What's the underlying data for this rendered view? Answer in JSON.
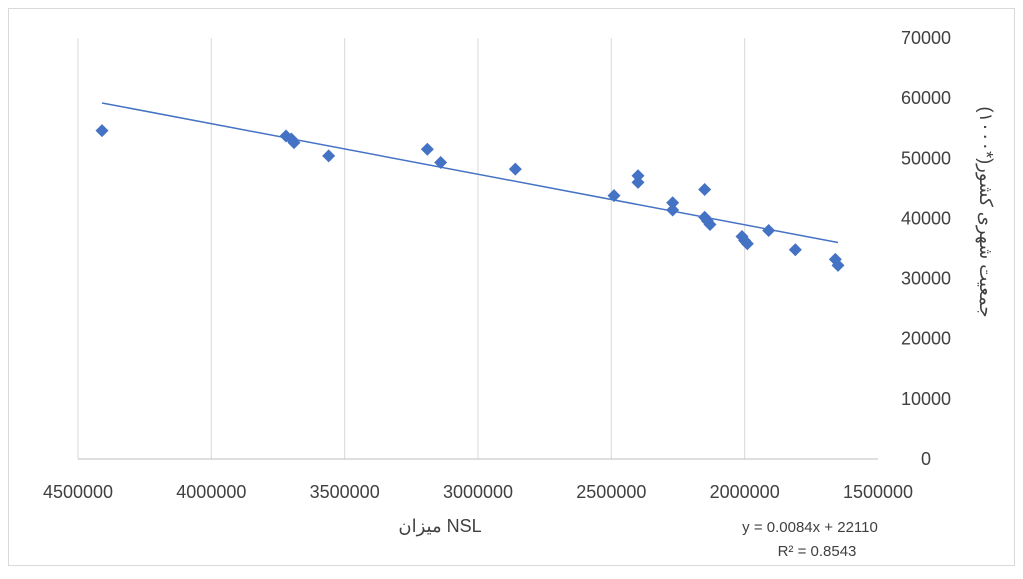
{
  "chart_data": {
    "type": "scatter",
    "title": "",
    "xlabel": "میزان NSL",
    "ylabel": "جمعیت شهری کشور(*۱۰۰۰)",
    "x_reversed": true,
    "xlim": [
      1500000,
      4500000
    ],
    "ylim": [
      0,
      70000
    ],
    "xticks": [
      "4500000",
      "4000000",
      "3500000",
      "3000000",
      "2500000",
      "2000000",
      "1500000"
    ],
    "yticks": [
      "0",
      "10000",
      "20000",
      "30000",
      "40000",
      "50000",
      "60000",
      "70000"
    ],
    "grid": "vertical",
    "legend": "none",
    "marker_color": "#4472C4",
    "trend_color": "#4472C4",
    "trendline": {
      "x": [
        4410000,
        1650000
      ],
      "y": [
        59200,
        36000
      ],
      "equation": "y = 0.0084x + 22110",
      "r_squared": "R² = 0.8543"
    },
    "series": [
      {
        "x": [
          4410000,
          3720000,
          3700000,
          3690000,
          3560000,
          3190000,
          3140000,
          2860000,
          2490000,
          2400000,
          2400000,
          2270000,
          2270000,
          2150000,
          2150000,
          2140000,
          2130000,
          2010000,
          2000000,
          1990000,
          1910000,
          1810000,
          1660000,
          1650000
        ],
        "y": [
          54600,
          53700,
          53200,
          52600,
          50400,
          51500,
          49300,
          48200,
          43800,
          47100,
          46000,
          42600,
          41400,
          44800,
          40200,
          39600,
          39000,
          37000,
          36300,
          35800,
          38000,
          34800,
          33200,
          32200
        ]
      }
    ]
  }
}
